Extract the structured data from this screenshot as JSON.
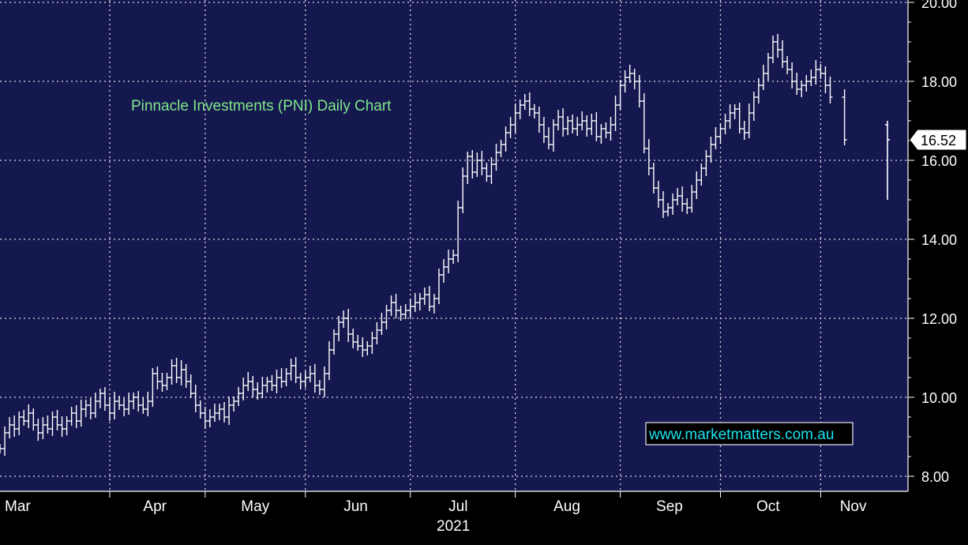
{
  "chart_data": {
    "type": "ohlc",
    "title": "Pinnacle Investments (PNI) Daily Chart",
    "watermark": "www.marketmatters.com.au",
    "last_price_label": "16.52",
    "year_label": "2021",
    "months": [
      {
        "label": "Mar",
        "day": 0
      },
      {
        "label": "Apr",
        "day": 23
      },
      {
        "label": "May",
        "day": 43
      },
      {
        "label": "Jun",
        "day": 64
      },
      {
        "label": "Jul",
        "day": 86
      },
      {
        "label": "Aug",
        "day": 108
      },
      {
        "label": "Sep",
        "day": 130
      },
      {
        "label": "Oct",
        "day": 151
      },
      {
        "label": "Nov",
        "day": 172
      }
    ],
    "y_ticks": [
      8,
      10,
      12,
      14,
      16,
      18,
      20
    ],
    "y_tick_labels": [
      "8.00",
      "10.00",
      "12.00",
      "14.00",
      "16.00",
      "18.00",
      "20.00"
    ],
    "ylim": [
      7.6,
      20.2
    ],
    "x_days": 186,
    "colors": {
      "background": "#15174f",
      "grid": "#d8d8e0",
      "bars": "#ffffff",
      "title": "#7ee889",
      "watermark": "#19e3ef",
      "axis_panel": "#000000"
    },
    "closes": [
      8.7,
      9.1,
      9.3,
      9.2,
      9.5,
      9.4,
      9.6,
      9.3,
      9.1,
      9.3,
      9.2,
      9.5,
      9.3,
      9.2,
      9.4,
      9.6,
      9.4,
      9.7,
      9.8,
      9.6,
      9.9,
      10.1,
      9.8,
      9.6,
      9.9,
      9.8,
      9.7,
      9.9,
      10.0,
      9.8,
      9.7,
      9.9,
      10.6,
      10.4,
      10.3,
      10.5,
      10.8,
      10.5,
      10.7,
      10.4,
      10.1,
      9.8,
      9.6,
      9.4,
      9.5,
      9.6,
      9.7,
      9.5,
      9.8,
      9.9,
      10.1,
      10.3,
      10.4,
      10.2,
      10.1,
      10.3,
      10.4,
      10.3,
      10.5,
      10.4,
      10.6,
      10.8,
      10.5,
      10.4,
      10.5,
      10.6,
      10.3,
      10.2,
      10.6,
      11.2,
      11.6,
      11.9,
      12.0,
      11.6,
      11.4,
      11.3,
      11.2,
      11.3,
      11.5,
      11.7,
      11.9,
      12.2,
      12.4,
      12.2,
      12.1,
      12.2,
      12.3,
      12.4,
      12.5,
      12.6,
      12.3,
      12.5,
      13.1,
      13.3,
      13.5,
      13.6,
      14.8,
      15.6,
      16.1,
      15.7,
      16.0,
      15.8,
      15.6,
      15.9,
      16.2,
      16.4,
      16.7,
      16.9,
      17.2,
      17.4,
      17.5,
      17.3,
      17.2,
      16.9,
      16.6,
      16.4,
      16.9,
      17.1,
      16.8,
      17.0,
      16.8,
      16.9,
      17.0,
      16.8,
      17.0,
      16.6,
      16.8,
      16.7,
      16.9,
      17.4,
      17.9,
      18.1,
      18.2,
      18.0,
      17.5,
      16.3,
      15.8,
      15.3,
      15.0,
      14.7,
      14.8,
      15.0,
      15.1,
      14.9,
      14.8,
      15.2,
      15.5,
      15.8,
      16.1,
      16.4,
      16.6,
      16.8,
      17.0,
      17.2,
      17.3,
      16.8,
      16.7,
      17.2,
      17.6,
      17.9,
      18.2,
      18.6,
      19.0,
      18.8,
      18.5,
      18.3,
      18.0,
      17.8,
      17.9,
      18.0,
      18.1,
      18.3,
      18.2,
      17.9,
      17.6,
      null,
      null,
      16.52
    ],
    "special_bars": [
      {
        "day": 186,
        "open": 16.9,
        "high": 17.0,
        "low": 15.0,
        "close": 16.52
      }
    ]
  }
}
